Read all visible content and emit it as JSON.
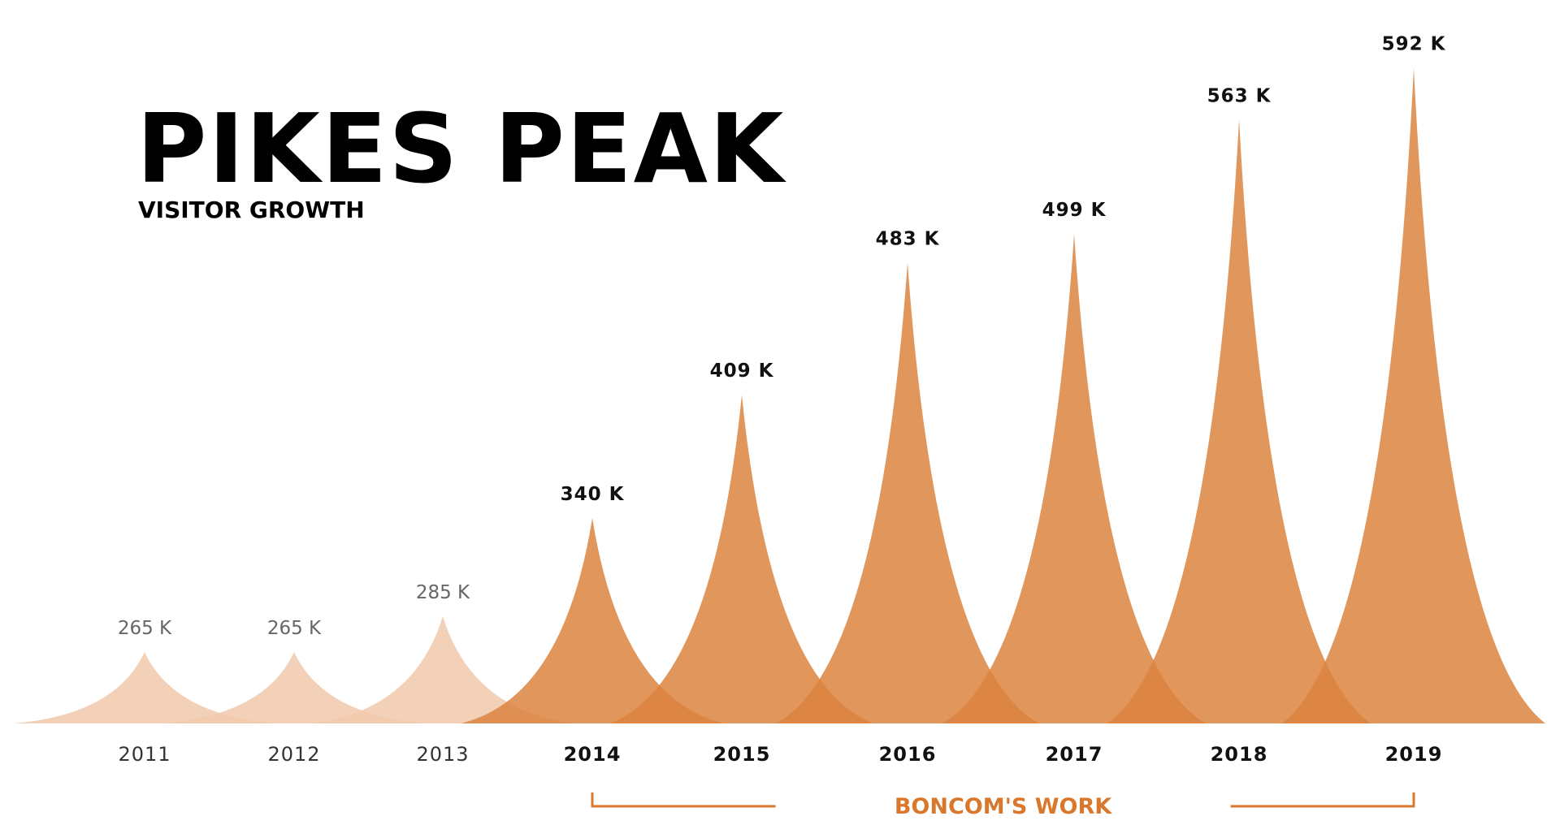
{
  "chart_data": {
    "type": "peak",
    "title": "PIKES PEAK",
    "subtitle": "VISITOR GROWTH",
    "categories": [
      "2011",
      "2012",
      "2013",
      "2014",
      "2015",
      "2016",
      "2017",
      "2018",
      "2019"
    ],
    "values": [
      265,
      265,
      285,
      340,
      409,
      483,
      499,
      563,
      592
    ],
    "value_labels": [
      "265 K",
      "265 K",
      "285 K",
      "340 K",
      "409 K",
      "483 K",
      "499 K",
      "563 K",
      "592 K"
    ],
    "colors": [
      "#f1c9ab",
      "#f1c9ab",
      "#f1c9ab",
      "#dc8440",
      "#dc8440",
      "#dc8440",
      "#dc8440",
      "#dc8440",
      "#dc8440"
    ],
    "emphasis": [
      false,
      false,
      false,
      true,
      true,
      true,
      true,
      true,
      true
    ],
    "ylim": [
      225,
      600
    ],
    "annotation": {
      "text": "BONCOM'S WORK",
      "start": "2014",
      "end": "2019",
      "color": "#d9782c"
    }
  }
}
